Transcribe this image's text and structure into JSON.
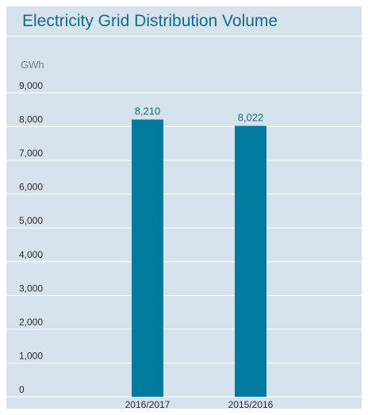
{
  "title": "Electricity Grid Distribution Volume",
  "unit_label": "GWh",
  "colors": {
    "bar": "#00799a",
    "background": "#d6e3ec",
    "title": "#0c6d8a",
    "gridline": "#ffffff"
  },
  "chart_data": {
    "type": "bar",
    "title": "Electricity Grid Distribution Volume",
    "ylabel": "GWh",
    "xlabel": "",
    "ylim": [
      0,
      9000
    ],
    "yticks": [
      0,
      1000,
      2000,
      3000,
      4000,
      5000,
      6000,
      7000,
      8000,
      9000
    ],
    "ytick_labels": [
      "0",
      "1,000",
      "2,000",
      "3,000",
      "4,000",
      "5,000",
      "6,000",
      "7,000",
      "8,000",
      "9,000"
    ],
    "categories": [
      "2016/2017",
      "2015/2016"
    ],
    "values": [
      8210,
      8022
    ],
    "data_labels": [
      "8,210",
      "8,022"
    ],
    "grid": true,
    "legend": "none"
  }
}
